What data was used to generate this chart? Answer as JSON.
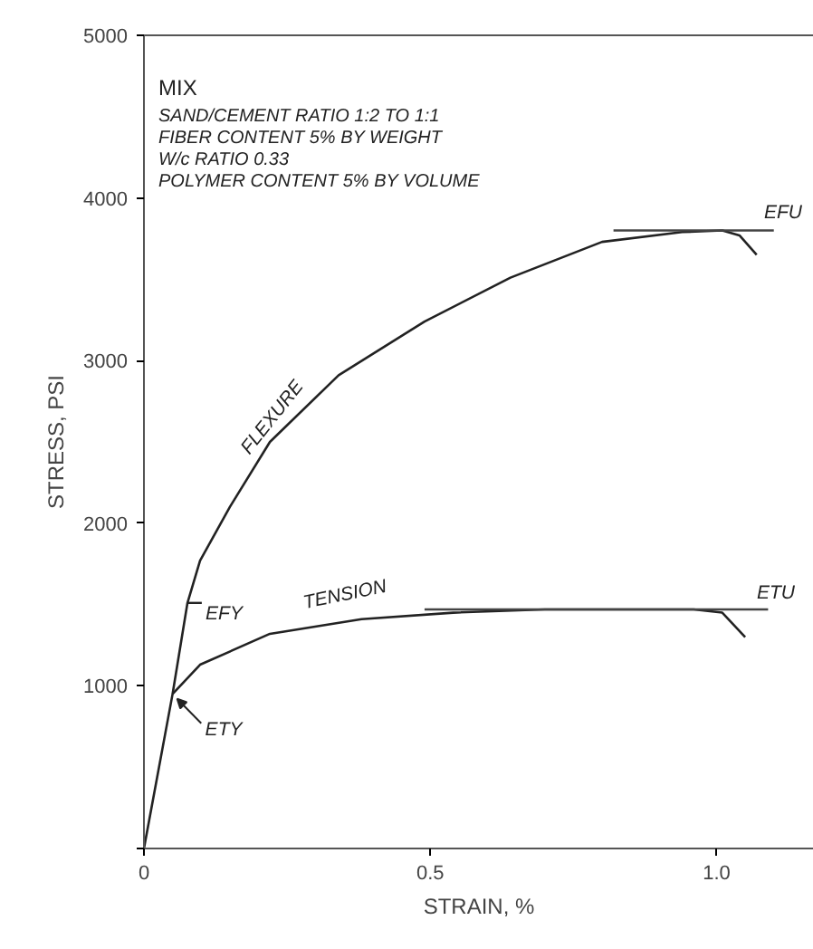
{
  "chart_data": {
    "type": "line",
    "xlabel": "STRAIN, %",
    "ylabel": "STRESS, PSI",
    "xlim": [
      0,
      1.17
    ],
    "ylim": [
      0,
      5000
    ],
    "xticks": [
      {
        "value": 0,
        "label": "0"
      },
      0.5,
      {
        "value": 1,
        "label": "1.0"
      }
    ],
    "yticks": [
      {
        "value": 0,
        "label": null
      },
      1000,
      2000,
      3000,
      4000,
      5000
    ],
    "marker": "none",
    "line_style": "solid",
    "series": [
      {
        "color": "#222222",
        "x": [
          0,
          0.05,
          0.076,
          0.098,
          0.15,
          0.22,
          0.34,
          0.49,
          0.64,
          0.8,
          0.94,
          1.01,
          1.04,
          1.07
        ],
        "values": [
          0,
          950,
          1510,
          1770,
          2100,
          2500,
          2910,
          3240,
          3510,
          3730,
          3790,
          3800,
          3770,
          3650
        ]
      },
      {
        "color": "#222222",
        "x": [
          0.05,
          0.098,
          0.22,
          0.38,
          0.54,
          0.7,
          0.96,
          1.01,
          1.05
        ],
        "values": [
          950,
          1130,
          1320,
          1410,
          1450,
          1470,
          1470,
          1450,
          1300
        ]
      },
      {
        "color": "#444444",
        "x": [
          0.82,
          1.1
        ],
        "values": [
          3800,
          3800
        ]
      },
      {
        "color": "#444444",
        "x": [
          0.49,
          1.09
        ],
        "values": [
          1470,
          1470
        ]
      }
    ],
    "annotations": [
      "MIX",
      "SAND/CEMENT RATIO 1:2 TO 1:1",
      "FIBER CONTENT 5% BY WEIGHT",
      "W/c RATIO 0.33",
      "POLYMER CONTENT 5% BY VOLUME",
      "EFU",
      "ETU",
      "FLEXURE",
      "TENSION",
      {
        "text": "EFY",
        "x": 0.076,
        "y": 1510
      },
      {
        "text": "ETY",
        "x": 0.05,
        "y": 950
      }
    ]
  }
}
